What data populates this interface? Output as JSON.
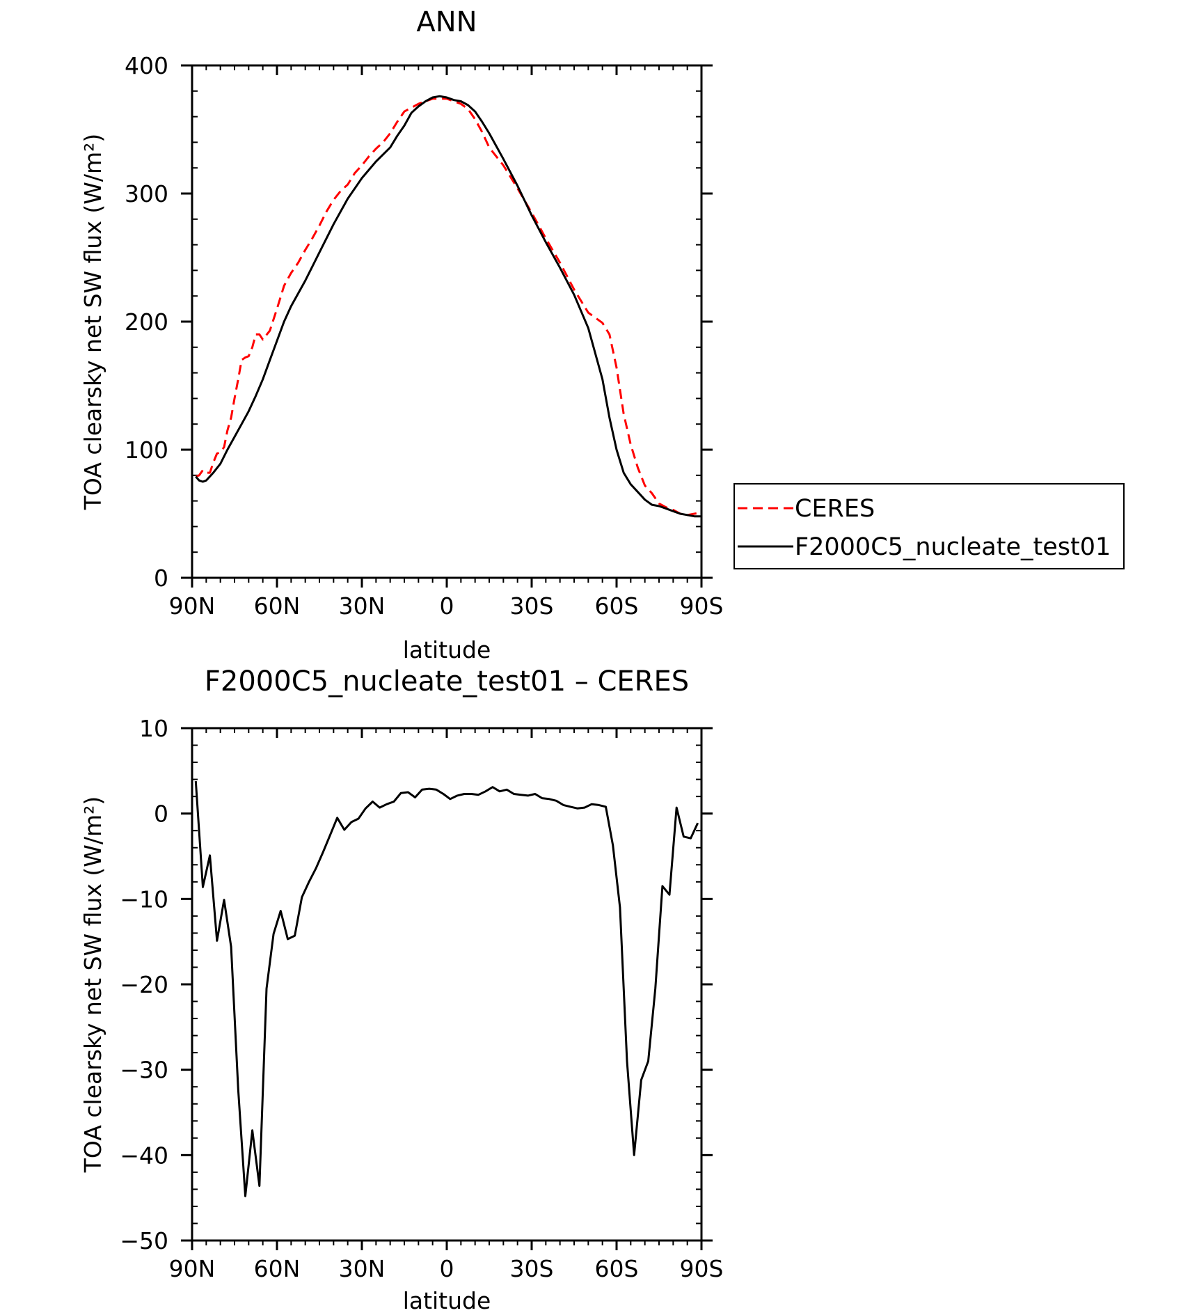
{
  "chart_data": [
    {
      "type": "line",
      "title": "ANN",
      "xlabel": "latitude",
      "ylabel": "TOA clearsky net SW flux (W/m²)",
      "xlim": [
        90,
        -90
      ],
      "ylim": [
        0,
        400
      ],
      "x_ticks": [
        90,
        60,
        30,
        0,
        -30,
        -60,
        -90
      ],
      "x_tick_labels": [
        "90N",
        "60N",
        "30N",
        "0",
        "30S",
        "60S",
        "90S"
      ],
      "y_ticks": [
        0,
        100,
        200,
        300,
        400
      ],
      "y_tick_labels": [
        "0",
        "100",
        "200",
        "300",
        "400"
      ],
      "grid": false,
      "legend_placement": "outside-right",
      "series": [
        {
          "name": "CERES",
          "color": "#ff0000",
          "dash": "dashed",
          "x": [
            88.7,
            87.5,
            86.2,
            85,
            83.7,
            82.5,
            81.2,
            80,
            78.7,
            77.5,
            76.2,
            75,
            73.7,
            72.5,
            71.2,
            70,
            68.7,
            67.5,
            66.2,
            65,
            62.5,
            60,
            57.5,
            55,
            52.5,
            50,
            47.5,
            45,
            42.5,
            40,
            37.5,
            35,
            32.5,
            30,
            27.5,
            25,
            22.5,
            20,
            17.5,
            15,
            12.5,
            10,
            7.5,
            5,
            2.5,
            0,
            -2.5,
            -5,
            -7.5,
            -10,
            -12.5,
            -15,
            -20,
            -25,
            -30,
            -35,
            -40,
            -45,
            -50,
            -55,
            -57.5,
            -60,
            -62.5,
            -65,
            -67.5,
            -70,
            -72.5,
            -75,
            -77.5,
            -80,
            -82.5,
            -85,
            -87.5,
            -90
          ],
          "y": [
            79,
            80,
            84,
            82,
            82,
            90,
            97,
            98,
            102,
            115,
            125,
            140,
            155,
            170,
            172,
            173,
            180,
            190,
            190,
            186,
            193,
            210,
            228,
            238,
            246,
            256,
            265,
            275,
            286,
            295,
            302,
            307,
            316,
            322,
            329,
            335,
            340,
            347,
            356,
            364,
            367,
            370,
            372,
            374,
            374,
            374,
            372,
            370,
            366,
            358,
            348,
            336,
            322,
            304,
            285,
            265,
            246,
            225,
            207,
            199,
            190,
            164,
            128,
            104,
            86,
            72,
            66,
            58,
            55,
            53,
            50,
            49,
            50,
            51
          ]
        },
        {
          "name": "F2000C5_nucleate_test01",
          "color": "#000000",
          "dash": "solid",
          "x": [
            88.7,
            87.5,
            86.2,
            85,
            82.5,
            80,
            77.5,
            75,
            72.5,
            70,
            67.5,
            65,
            62.5,
            60,
            57.5,
            55,
            52.5,
            50,
            45,
            40,
            35,
            30,
            25,
            20,
            17.5,
            15,
            12.5,
            10,
            7.5,
            5,
            2.5,
            0,
            -2.5,
            -5,
            -7.5,
            -10,
            -12.5,
            -15,
            -20,
            -25,
            -30,
            -35,
            -40,
            -45,
            -50,
            -55,
            -57.5,
            -60,
            -62.5,
            -65,
            -67.5,
            -70,
            -72.5,
            -75,
            -77.5,
            -80,
            -82.5,
            -85,
            -87.5,
            -90
          ],
          "y": [
            79,
            76,
            75,
            76,
            82,
            89,
            100,
            110,
            120,
            130,
            142,
            155,
            170,
            185,
            200,
            212,
            222,
            232,
            254,
            276,
            296,
            312,
            325,
            336,
            345,
            353,
            363,
            368,
            372,
            375,
            376,
            375,
            373,
            372,
            369,
            364,
            356,
            347,
            327,
            306,
            283,
            262,
            242,
            221,
            195,
            155,
            125,
            100,
            82,
            73,
            67,
            61,
            57,
            56,
            54,
            52,
            50,
            49,
            48,
            48
          ]
        }
      ]
    },
    {
      "type": "line",
      "title": "F2000C5_nucleate_test01 – CERES",
      "xlabel": "latitude",
      "ylabel": "TOA clearsky net SW flux (W/m²)",
      "xlim": [
        90,
        -90
      ],
      "ylim": [
        -50,
        10
      ],
      "x_ticks": [
        90,
        60,
        30,
        0,
        -30,
        -60,
        -90
      ],
      "x_tick_labels": [
        "90N",
        "60N",
        "30N",
        "0",
        "30S",
        "60S",
        "90S"
      ],
      "y_ticks": [
        -50,
        -40,
        -30,
        -20,
        -10,
        0,
        10
      ],
      "y_tick_labels": [
        "−50",
        "−40",
        "−30",
        "−20",
        "−10",
        "0",
        "10"
      ],
      "grid": false,
      "series": [
        {
          "color": "#000000",
          "dash": "solid",
          "x": [
            88.7,
            86.2,
            83.7,
            81.2,
            78.7,
            76.2,
            73.7,
            71.2,
            68.7,
            66.2,
            63.7,
            61.2,
            58.7,
            56.2,
            53.7,
            51.2,
            48.7,
            46.2,
            43.7,
            41.2,
            38.7,
            36.2,
            33.7,
            31.2,
            28.7,
            26.2,
            23.7,
            21.2,
            18.7,
            16.2,
            13.7,
            11.2,
            8.7,
            6.2,
            3.7,
            1.2,
            -1.2,
            -3.7,
            -6.2,
            -8.7,
            -11.2,
            -13.7,
            -16.2,
            -18.7,
            -21.2,
            -23.7,
            -26.2,
            -28.7,
            -31.2,
            -33.7,
            -36.2,
            -38.7,
            -41.2,
            -43.7,
            -46.2,
            -48.7,
            -51.2,
            -53.7,
            -56.2,
            -58.7,
            -61.2,
            -63.7,
            -66.2,
            -68.7,
            -71.2,
            -73.7,
            -76.2,
            -78.7,
            -81.2,
            -83.7,
            -86.2,
            -88.7
          ],
          "y": [
            3.8,
            -8.6,
            -4.9,
            -14.9,
            -10.1,
            -15.6,
            -32.3,
            -44.8,
            -37.1,
            -43.6,
            -20.5,
            -14.1,
            -11.4,
            -14.7,
            -14.3,
            -9.8,
            -8.0,
            -6.4,
            -4.5,
            -2.5,
            -0.5,
            -1.9,
            -1.0,
            -0.6,
            0.6,
            1.4,
            0.7,
            1.1,
            1.4,
            2.4,
            2.5,
            1.9,
            2.8,
            2.9,
            2.8,
            2.3,
            1.7,
            2.1,
            2.3,
            2.3,
            2.2,
            2.6,
            3.1,
            2.6,
            2.8,
            2.3,
            2.2,
            2.1,
            2.3,
            1.8,
            1.7,
            1.5,
            1.0,
            0.8,
            0.6,
            0.7,
            1.1,
            1.0,
            0.8,
            -3.7,
            -11.0,
            -29.0,
            -40.0,
            -31.2,
            -29.0,
            -20.5,
            -8.5,
            -9.5,
            0.7,
            -2.7,
            -2.9,
            -1.1
          ]
        }
      ]
    }
  ]
}
